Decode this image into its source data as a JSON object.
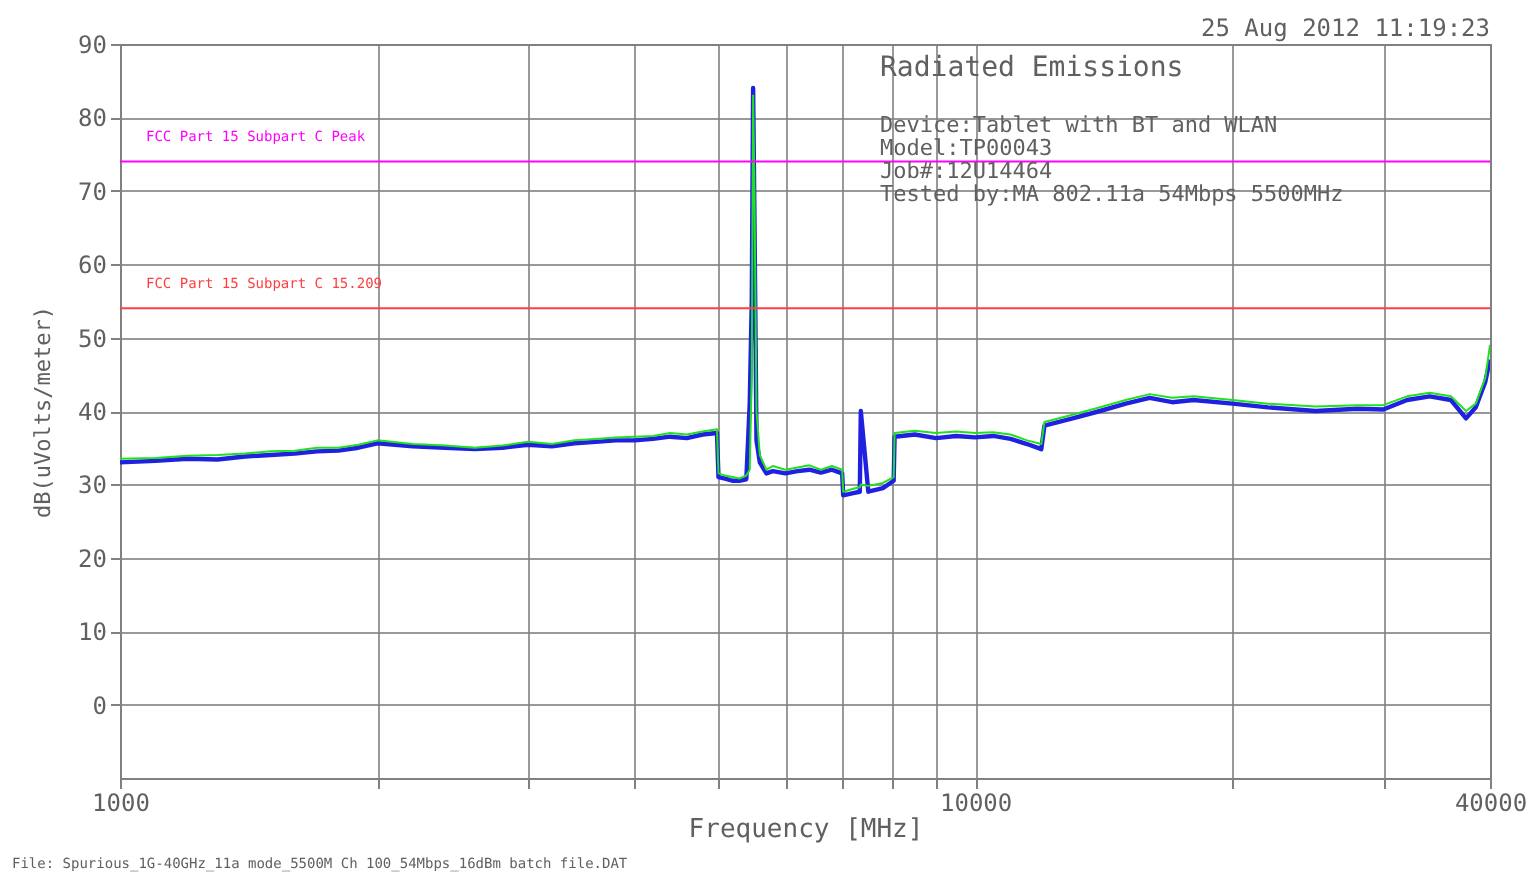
{
  "chart_data": {
    "type": "line",
    "title": "Radiated Emissions",
    "subtitle": "25 Aug 2012   11:19:23",
    "xlabel": "Frequency [MHz]",
    "ylabel": "dB(uVolts/meter)",
    "annotations": [
      "Device:Tablet with BT and WLAN",
      "Model:TP00043",
      "Job#:12U14464",
      "Tested by:MA  802.11a 54Mbps 5500MHz",
      "File: Spurious_1G-40GHz_11a mode_5500M Ch 100_54Mbps_16dBm batch file.DAT"
    ],
    "log": "x",
    "grid": true,
    "xlim": [
      1000,
      40000
    ],
    "ylim": [
      -10,
      90
    ],
    "xticks": [
      1000,
      {
        "value": 2000,
        "label": null
      },
      {
        "value": 3000,
        "label": null
      },
      {
        "value": 4000,
        "label": null
      },
      {
        "value": 5000,
        "label": null
      },
      {
        "value": 6000,
        "label": null
      },
      {
        "value": 7000,
        "label": null
      },
      {
        "value": 8000,
        "label": null
      },
      {
        "value": 9000,
        "label": null
      },
      10000,
      {
        "value": 20000,
        "label": null
      },
      {
        "value": 30000,
        "label": null
      },
      40000
    ],
    "yticks": [
      0,
      10,
      20,
      30,
      40,
      50,
      60,
      70,
      80,
      90
    ],
    "ref_lines": [
      {
        "axis": "y",
        "value": 74,
        "label": "FCC Part 15 Subpart C Peak",
        "color": "#ff00ff"
      },
      {
        "axis": "y",
        "value": 54,
        "label": "FCC Part 15 Subpart C 15.209",
        "color": "#ff4040"
      }
    ],
    "x": [
      1000,
      1100,
      1200,
      1300,
      1400,
      1500,
      1600,
      1700,
      1800,
      1900,
      2000,
      2200,
      2400,
      2600,
      2800,
      3000,
      3200,
      3400,
      3600,
      3800,
      4000,
      4200,
      4400,
      4600,
      4800,
      4990,
      5010,
      5100,
      5200,
      5300,
      5400,
      5450,
      5480,
      5500,
      5520,
      5550,
      5600,
      5700,
      5800,
      6000,
      6200,
      6400,
      6600,
      6800,
      6990,
      7010,
      7200,
      7330,
      7350,
      7500,
      7800,
      8030,
      8050,
      8500,
      9000,
      9500,
      10000,
      10500,
      11000,
      11500,
      11950,
      12050,
      13000,
      14000,
      15000,
      16000,
      17000,
      18000,
      20000,
      22000,
      25000,
      28000,
      30000,
      32000,
      34000,
      36000,
      37500,
      38500,
      39500,
      40000
    ],
    "series": [
      {
        "color": "#2020e0",
        "values": [
          33,
          33.2,
          33.5,
          33.4,
          33.8,
          34,
          34.2,
          34.5,
          34.6,
          35,
          35.6,
          35.2,
          35,
          34.8,
          35,
          35.4,
          35.2,
          35.6,
          35.8,
          36,
          36,
          36.2,
          36.5,
          36.3,
          36.8,
          37,
          31,
          30.8,
          30.5,
          30.5,
          30.7,
          41,
          55,
          84,
          66,
          36,
          33,
          31.5,
          31.8,
          31.5,
          31.8,
          32,
          31.6,
          32,
          31.5,
          28.5,
          28.8,
          29,
          40,
          29,
          29.5,
          30.5,
          36.5,
          36.8,
          36.3,
          36.6,
          36.4,
          36.6,
          36.2,
          35.5,
          34.8,
          38,
          39,
          40,
          41,
          41.8,
          41.2,
          41.5,
          41,
          40.5,
          40,
          40.3,
          40.2,
          41.5,
          42,
          41.5,
          39,
          40.5,
          44,
          47
        ]
      },
      {
        "color": "#20e020",
        "values": [
          33.5,
          33.6,
          33.9,
          34,
          34.2,
          34.5,
          34.6,
          35,
          35,
          35.4,
          36,
          35.5,
          35.3,
          35,
          35.3,
          35.8,
          35.5,
          36,
          36.2,
          36.4,
          36.5,
          36.6,
          37,
          36.8,
          37.2,
          37.5,
          31.5,
          31.2,
          31,
          30.8,
          31.2,
          32,
          45,
          83,
          70,
          40,
          34,
          32,
          32.5,
          32,
          32.3,
          32.6,
          32,
          32.5,
          32,
          29,
          29.4,
          29.6,
          30,
          29.8,
          30.2,
          31,
          37,
          37.3,
          37,
          37.2,
          37,
          37.1,
          36.8,
          36,
          35.5,
          38.5,
          39.5,
          40.5,
          41.5,
          42.3,
          41.8,
          42,
          41.5,
          41,
          40.6,
          40.8,
          40.8,
          42,
          42.5,
          42,
          40,
          41,
          44.5,
          49
        ]
      }
    ]
  }
}
